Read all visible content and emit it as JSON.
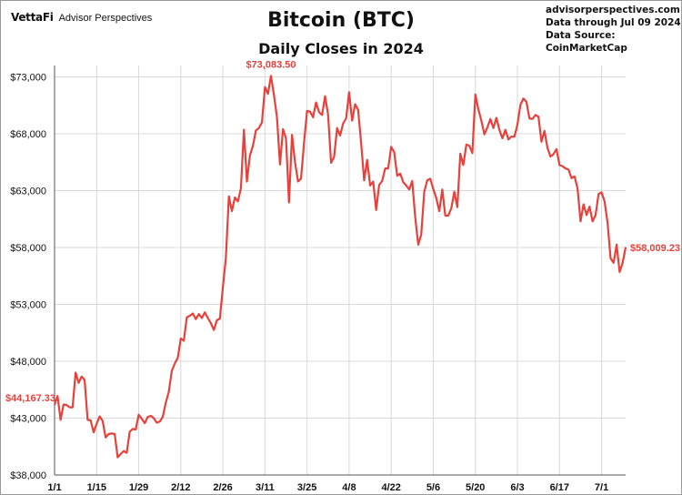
{
  "header": {
    "logo_brand": "VettaFi",
    "logo_sub": "Advisor Perspectives",
    "website": "advisorperspectives.com",
    "data_through": "Data through Jul 09 2024",
    "data_source": "Data Source: CoinMarketCap"
  },
  "colors": {
    "line": "#e8403a",
    "grid": "#d8d8d8",
    "axis": "#555555",
    "text": "#111111"
  },
  "chart_data": {
    "type": "line",
    "title": "Bitcoin (BTC)",
    "subtitle": "Daily Closes in 2024",
    "xlabel": "",
    "ylabel": "",
    "grid": true,
    "ylim": [
      38000,
      74000
    ],
    "y_ticks": [
      38000,
      43000,
      48000,
      53000,
      58000,
      63000,
      68000,
      73000
    ],
    "y_tick_labels": [
      "$38,000",
      "$43,000",
      "$48,000",
      "$53,000",
      "$58,000",
      "$63,000",
      "$68,000",
      "$73,000"
    ],
    "x_ticks": [
      "2024-01-01",
      "2024-01-15",
      "2024-01-29",
      "2024-02-12",
      "2024-02-26",
      "2024-03-11",
      "2024-03-25",
      "2024-04-08",
      "2024-04-22",
      "2024-05-06",
      "2024-05-20",
      "2024-06-03",
      "2024-06-17",
      "2024-07-01"
    ],
    "x_tick_labels": [
      "1/1",
      "1/15",
      "1/29",
      "2/12",
      "2/26",
      "3/11",
      "3/25",
      "4/8",
      "4/22",
      "5/6",
      "5/20",
      "6/3",
      "6/17",
      "7/1"
    ],
    "series": [
      {
        "color": "#e8403a",
        "points": [
          [
            "2024-01-01",
            44167.33
          ],
          [
            "2024-01-02",
            44950
          ],
          [
            "2024-01-03",
            42850
          ],
          [
            "2024-01-04",
            44200
          ],
          [
            "2024-01-05",
            44150
          ],
          [
            "2024-01-06",
            43950
          ],
          [
            "2024-01-07",
            43950
          ],
          [
            "2024-01-08",
            47000
          ],
          [
            "2024-01-09",
            46100
          ],
          [
            "2024-01-10",
            46650
          ],
          [
            "2024-01-11",
            46350
          ],
          [
            "2024-01-12",
            42850
          ],
          [
            "2024-01-13",
            42800
          ],
          [
            "2024-01-14",
            41750
          ],
          [
            "2024-01-15",
            42500
          ],
          [
            "2024-01-16",
            43150
          ],
          [
            "2024-01-17",
            42750
          ],
          [
            "2024-01-18",
            41300
          ],
          [
            "2024-01-19",
            41600
          ],
          [
            "2024-01-20",
            41650
          ],
          [
            "2024-01-21",
            41600
          ],
          [
            "2024-01-22",
            39550
          ],
          [
            "2024-01-23",
            39850
          ],
          [
            "2024-01-24",
            40100
          ],
          [
            "2024-01-25",
            39950
          ],
          [
            "2024-01-26",
            41800
          ],
          [
            "2024-01-27",
            42050
          ],
          [
            "2024-01-28",
            42000
          ],
          [
            "2024-01-29",
            43300
          ],
          [
            "2024-01-30",
            42950
          ],
          [
            "2024-01-31",
            42550
          ],
          [
            "2024-02-01",
            43100
          ],
          [
            "2024-02-02",
            43200
          ],
          [
            "2024-02-03",
            43000
          ],
          [
            "2024-02-04",
            42600
          ],
          [
            "2024-02-05",
            42700
          ],
          [
            "2024-02-06",
            43100
          ],
          [
            "2024-02-07",
            44350
          ],
          [
            "2024-02-08",
            45300
          ],
          [
            "2024-02-09",
            47150
          ],
          [
            "2024-02-10",
            47800
          ],
          [
            "2024-02-11",
            48300
          ],
          [
            "2024-02-12",
            50000
          ],
          [
            "2024-02-13",
            49800
          ],
          [
            "2024-02-14",
            51850
          ],
          [
            "2024-02-15",
            52000
          ],
          [
            "2024-02-16",
            52200
          ],
          [
            "2024-02-17",
            51700
          ],
          [
            "2024-02-18",
            52150
          ],
          [
            "2024-02-19",
            51800
          ],
          [
            "2024-02-20",
            52300
          ],
          [
            "2024-02-21",
            51800
          ],
          [
            "2024-02-22",
            51350
          ],
          [
            "2024-02-23",
            50750
          ],
          [
            "2024-02-24",
            51600
          ],
          [
            "2024-02-25",
            51750
          ],
          [
            "2024-02-26",
            54500
          ],
          [
            "2024-02-27",
            57100
          ],
          [
            "2024-02-28",
            62500
          ],
          [
            "2024-02-29",
            61200
          ],
          [
            "2024-03-01",
            62400
          ],
          [
            "2024-03-02",
            62050
          ],
          [
            "2024-03-03",
            63200
          ],
          [
            "2024-03-04",
            68350
          ],
          [
            "2024-03-05",
            63800
          ],
          [
            "2024-03-06",
            66100
          ],
          [
            "2024-03-07",
            66950
          ],
          [
            "2024-03-08",
            68300
          ],
          [
            "2024-03-09",
            68500
          ],
          [
            "2024-03-10",
            69000
          ],
          [
            "2024-03-11",
            72100
          ],
          [
            "2024-03-12",
            71500
          ],
          [
            "2024-03-13",
            73083.5
          ],
          [
            "2024-03-14",
            71400
          ],
          [
            "2024-03-15",
            69450
          ],
          [
            "2024-03-16",
            65300
          ],
          [
            "2024-03-17",
            68400
          ],
          [
            "2024-03-18",
            67600
          ],
          [
            "2024-03-19",
            61950
          ],
          [
            "2024-03-20",
            67900
          ],
          [
            "2024-03-21",
            65500
          ],
          [
            "2024-03-22",
            63800
          ],
          [
            "2024-03-23",
            64050
          ],
          [
            "2024-03-24",
            67200
          ],
          [
            "2024-03-25",
            70000
          ],
          [
            "2024-03-26",
            69950
          ],
          [
            "2024-03-27",
            69450
          ],
          [
            "2024-03-28",
            70750
          ],
          [
            "2024-03-29",
            69900
          ],
          [
            "2024-03-30",
            69650
          ],
          [
            "2024-03-31",
            71300
          ],
          [
            "2024-04-01",
            69700
          ],
          [
            "2024-04-02",
            65450
          ],
          [
            "2024-04-03",
            65950
          ],
          [
            "2024-04-04",
            68500
          ],
          [
            "2024-04-05",
            67850
          ],
          [
            "2024-04-06",
            68900
          ],
          [
            "2024-04-07",
            69350
          ],
          [
            "2024-04-08",
            71650
          ],
          [
            "2024-04-09",
            69150
          ],
          [
            "2024-04-10",
            70600
          ],
          [
            "2024-04-11",
            70100
          ],
          [
            "2024-04-12",
            67200
          ],
          [
            "2024-04-13",
            63900
          ],
          [
            "2024-04-14",
            65700
          ],
          [
            "2024-04-15",
            63450
          ],
          [
            "2024-04-16",
            63800
          ],
          [
            "2024-04-17",
            61300
          ],
          [
            "2024-04-18",
            63500
          ],
          [
            "2024-04-19",
            63850
          ],
          [
            "2024-04-20",
            64950
          ],
          [
            "2024-04-21",
            64950
          ],
          [
            "2024-04-22",
            66850
          ],
          [
            "2024-04-23",
            66400
          ],
          [
            "2024-04-24",
            64300
          ],
          [
            "2024-04-25",
            64500
          ],
          [
            "2024-04-26",
            63750
          ],
          [
            "2024-04-27",
            63450
          ],
          [
            "2024-04-28",
            63100
          ],
          [
            "2024-04-29",
            63850
          ],
          [
            "2024-04-30",
            60650
          ],
          [
            "2024-05-01",
            58250
          ],
          [
            "2024-05-02",
            59150
          ],
          [
            "2024-05-03",
            62900
          ],
          [
            "2024-05-04",
            63900
          ],
          [
            "2024-05-05",
            64050
          ],
          [
            "2024-05-06",
            63150
          ],
          [
            "2024-05-07",
            62350
          ],
          [
            "2024-05-08",
            61200
          ],
          [
            "2024-05-09",
            63100
          ],
          [
            "2024-05-10",
            60800
          ],
          [
            "2024-05-11",
            60800
          ],
          [
            "2024-05-12",
            61450
          ],
          [
            "2024-05-13",
            62900
          ],
          [
            "2024-05-14",
            61550
          ],
          [
            "2024-05-15",
            66250
          ],
          [
            "2024-05-16",
            65250
          ],
          [
            "2024-05-17",
            67050
          ],
          [
            "2024-05-18",
            66950
          ],
          [
            "2024-05-19",
            66300
          ],
          [
            "2024-05-20",
            71450
          ],
          [
            "2024-05-21",
            70150
          ],
          [
            "2024-05-22",
            69150
          ],
          [
            "2024-05-23",
            67950
          ],
          [
            "2024-05-24",
            68550
          ],
          [
            "2024-05-25",
            69300
          ],
          [
            "2024-05-26",
            68500
          ],
          [
            "2024-05-27",
            69400
          ],
          [
            "2024-05-28",
            68350
          ],
          [
            "2024-05-29",
            67600
          ],
          [
            "2024-05-30",
            68350
          ],
          [
            "2024-05-31",
            67500
          ],
          [
            "2024-06-01",
            67750
          ],
          [
            "2024-06-02",
            67750
          ],
          [
            "2024-06-03",
            68800
          ],
          [
            "2024-06-04",
            70550
          ],
          [
            "2024-06-05",
            71100
          ],
          [
            "2024-06-06",
            70800
          ],
          [
            "2024-06-07",
            69350
          ],
          [
            "2024-06-08",
            69300
          ],
          [
            "2024-06-09",
            69650
          ],
          [
            "2024-06-10",
            69500
          ],
          [
            "2024-06-11",
            67300
          ],
          [
            "2024-06-12",
            68250
          ],
          [
            "2024-06-13",
            66750
          ],
          [
            "2024-06-14",
            66000
          ],
          [
            "2024-06-15",
            66200
          ],
          [
            "2024-06-16",
            66650
          ],
          [
            "2024-06-17",
            65250
          ],
          [
            "2024-06-18",
            65150
          ],
          [
            "2024-06-19",
            64950
          ],
          [
            "2024-06-20",
            64850
          ],
          [
            "2024-06-21",
            64100
          ],
          [
            "2024-06-22",
            64250
          ],
          [
            "2024-06-23",
            63200
          ],
          [
            "2024-06-24",
            60300
          ],
          [
            "2024-06-25",
            61800
          ],
          [
            "2024-06-26",
            60850
          ],
          [
            "2024-06-27",
            61600
          ],
          [
            "2024-06-28",
            60300
          ],
          [
            "2024-06-29",
            60850
          ],
          [
            "2024-06-30",
            62700
          ],
          [
            "2024-07-01",
            62850
          ],
          [
            "2024-07-02",
            62050
          ],
          [
            "2024-07-03",
            60150
          ],
          [
            "2024-07-04",
            57050
          ],
          [
            "2024-07-05",
            56650
          ],
          [
            "2024-07-06",
            58250
          ],
          [
            "2024-07-07",
            55850
          ],
          [
            "2024-07-08",
            56650
          ],
          [
            "2024-07-09",
            58009.23
          ]
        ]
      }
    ],
    "annotations": [
      {
        "date": "2024-01-01",
        "value": 44167.33,
        "text": "$44,167.33"
      },
      {
        "date": "2024-03-13",
        "value": 73083.5,
        "text": "$73,083.50"
      },
      {
        "date": "2024-07-09",
        "value": 58009.23,
        "text": "$58,009.23"
      }
    ]
  }
}
